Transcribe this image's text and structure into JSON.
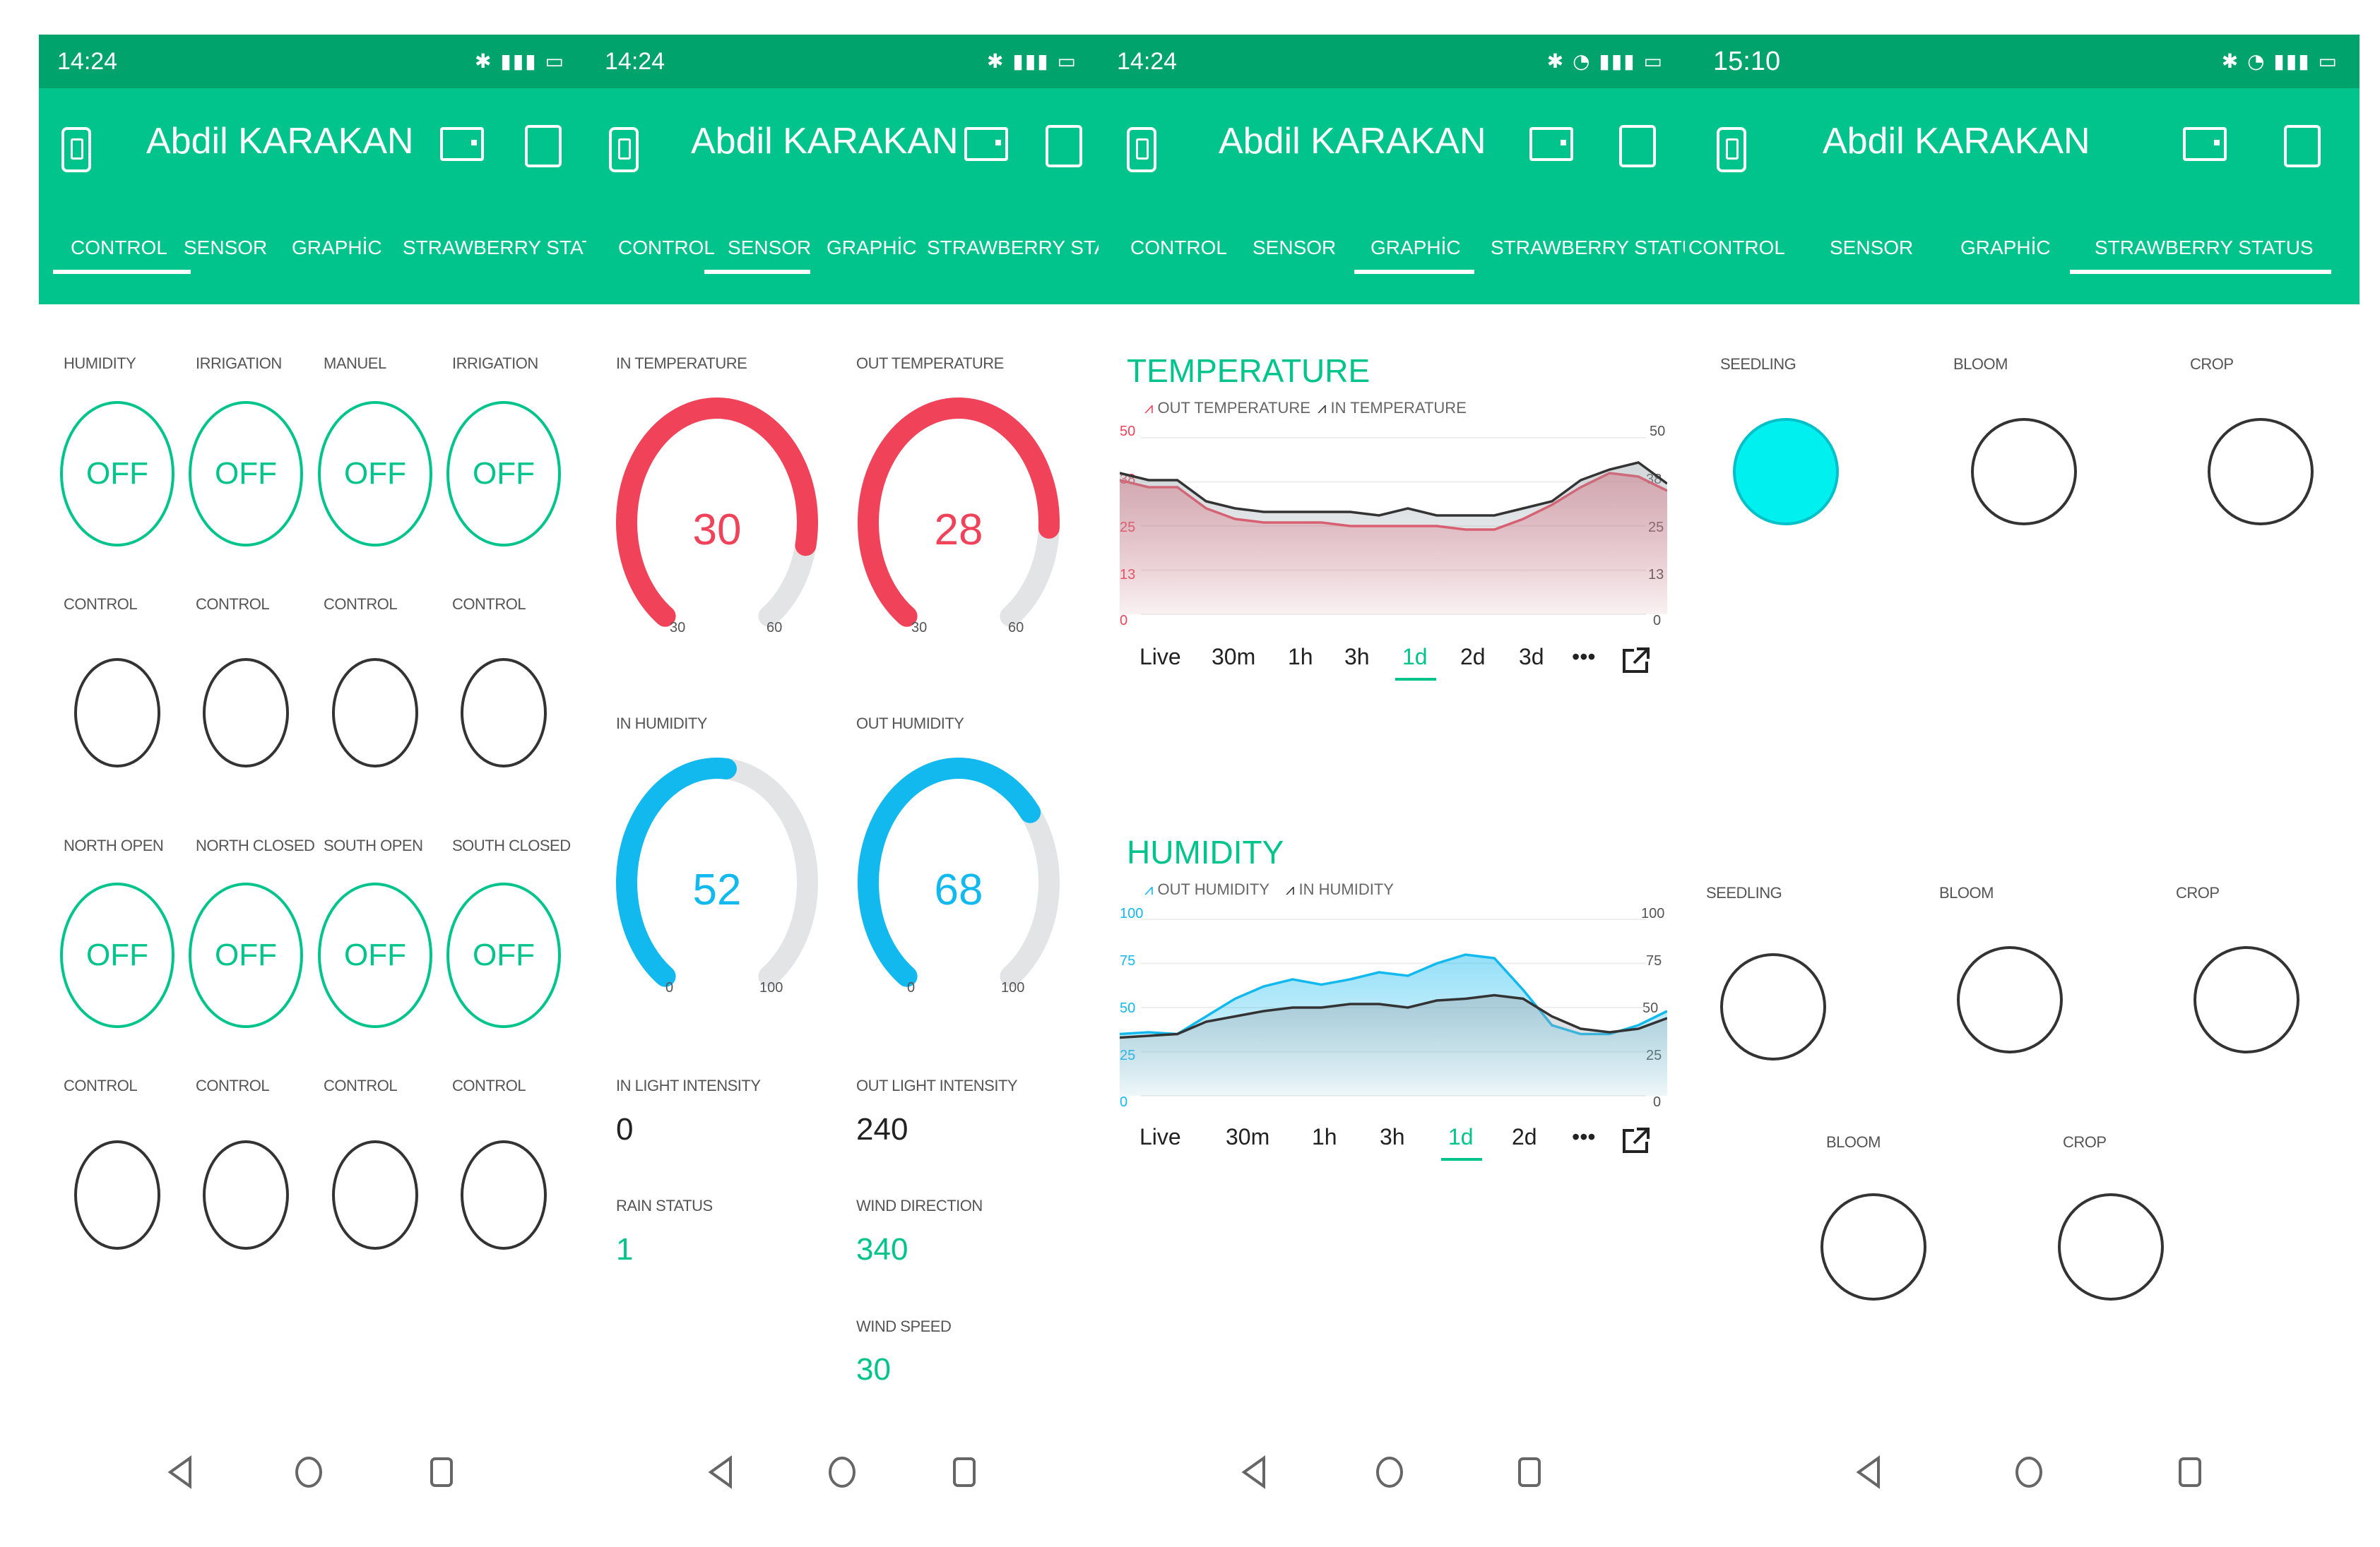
{
  "colors": {
    "status_bar": "#00a36b",
    "app_bar": "#00c48b",
    "accent": "#00c48b",
    "red": "#f0435a",
    "blue": "#12b9ef",
    "cyan_led": "#00f0f0"
  },
  "panels": [
    {
      "time": "14:24",
      "title": "Abdil KARAKAN",
      "tabs": [
        "CONTROL",
        "SENSOR",
        "GRAPHİC",
        "STRAWBERRY STATUS"
      ],
      "active_tab": 0
    },
    {
      "time": "14:24",
      "title": "Abdil KARAKAN",
      "tabs": [
        "CONTROL",
        "SENSOR",
        "GRAPHİC",
        "STRAWBERRY STATUS"
      ],
      "active_tab": 1
    },
    {
      "time": "14:24",
      "title": "Abdil KARAKAN",
      "tabs": [
        "CONTROL",
        "SENSOR",
        "GRAPHİC",
        "STRAWBERRY STATUS"
      ],
      "active_tab": 2
    },
    {
      "time": "15:10",
      "title": "Abdil KARAKAN",
      "tabs": [
        "CONTROL",
        "SENSOR",
        "GRAPHİC",
        "STRAWBERRY STATUS"
      ],
      "active_tab": 3
    }
  ],
  "control": {
    "row1_labels": [
      "HUMIDITY",
      "IRRIGATION",
      "MANUEL",
      "IRRIGATION"
    ],
    "row1_values": [
      "OFF",
      "OFF",
      "OFF",
      "OFF"
    ],
    "row2_labels": [
      "CONTROL",
      "CONTROL",
      "CONTROL",
      "CONTROL"
    ],
    "row3_labels": [
      "NORTH OPEN",
      "NORTH CLOSED",
      "SOUTH OPEN",
      "SOUTH CLOSED"
    ],
    "row3_values": [
      "OFF",
      "OFF",
      "OFF",
      "OFF"
    ],
    "row4_labels": [
      "CONTROL",
      "CONTROL",
      "CONTROL",
      "CONTROL"
    ]
  },
  "sensor": {
    "gauges": [
      {
        "label": "IN TEMPERATURE",
        "value": "30",
        "min": "30",
        "max": "60",
        "fraction": 0.85,
        "color": "#f0435a"
      },
      {
        "label": "OUT TEMPERATURE",
        "value": "28",
        "min": "30",
        "max": "60",
        "fraction": 0.82,
        "color": "#f0435a"
      },
      {
        "label": "IN HUMIDITY",
        "value": "52",
        "min": "0",
        "max": "100",
        "fraction": 0.52,
        "color": "#12b9ef"
      },
      {
        "label": "OUT HUMIDITY",
        "value": "68",
        "min": "0",
        "max": "100",
        "fraction": 0.68,
        "color": "#12b9ef"
      }
    ],
    "in_light_label": "IN LIGHT INTENSITY",
    "in_light_value": "0",
    "out_light_label": "OUT LIGHT INTENSITY",
    "out_light_value": "240",
    "rain_label": "RAIN STATUS",
    "rain_value": "1",
    "wind_dir_label": "WIND DIRECTION",
    "wind_dir_value": "340",
    "wind_speed_label": "WIND SPEED",
    "wind_speed_value": "30"
  },
  "graphic": {
    "temp_title": "TEMPERATURE",
    "temp_legend": [
      "OUT TEMPERATURE",
      "IN TEMPERATURE"
    ],
    "temp_left_ticks": [
      "50",
      "38",
      "25",
      "13",
      "0"
    ],
    "temp_right_ticks": [
      "50",
      "38",
      "25",
      "13",
      "0"
    ],
    "temp_ranges": [
      "Live",
      "30m",
      "1h",
      "3h",
      "1d",
      "2d",
      "3d",
      "•••"
    ],
    "temp_active_range": 4,
    "hum_title": "HUMIDITY",
    "hum_legend": [
      "OUT HUMIDITY",
      "IN HUMIDITY"
    ],
    "hum_left_ticks": [
      "100",
      "75",
      "50",
      "25",
      "0"
    ],
    "hum_right_ticks": [
      "100",
      "75",
      "50",
      "25",
      "0"
    ],
    "hum_ranges": [
      "Live",
      "30m",
      "1h",
      "3h",
      "1d",
      "2d",
      "•••"
    ],
    "hum_active_range": 4
  },
  "chart_data": [
    {
      "type": "area",
      "title": "TEMPERATURE",
      "ylim": [
        0,
        50
      ],
      "series": [
        {
          "name": "OUT TEMPERATURE",
          "values": [
            38,
            36,
            36,
            30,
            27,
            26,
            26,
            26,
            25,
            25,
            25,
            25,
            24,
            24,
            27,
            31,
            36,
            40,
            39,
            35
          ]
        },
        {
          "name": "IN TEMPERATURE",
          "values": [
            40,
            38,
            38,
            32,
            30,
            29,
            29,
            29,
            29,
            28,
            30,
            28,
            28,
            28,
            30,
            32,
            38,
            41,
            43,
            37
          ]
        }
      ]
    },
    {
      "type": "area",
      "title": "HUMIDITY",
      "ylim": [
        0,
        100
      ],
      "series": [
        {
          "name": "OUT HUMIDITY",
          "values": [
            35,
            36,
            35,
            45,
            55,
            62,
            66,
            63,
            66,
            70,
            68,
            75,
            80,
            78,
            60,
            40,
            35,
            35,
            40,
            48
          ]
        },
        {
          "name": "IN HUMIDITY",
          "values": [
            33,
            34,
            35,
            42,
            45,
            48,
            50,
            50,
            52,
            52,
            50,
            54,
            55,
            57,
            55,
            45,
            38,
            36,
            38,
            44
          ]
        }
      ]
    }
  ],
  "strawberry": {
    "row1_labels": [
      "SEEDLING",
      "BLOOM",
      "CROP"
    ],
    "row2_labels": [
      "SEEDLING",
      "BLOOM",
      "CROP"
    ],
    "row3_labels": [
      "BLOOM",
      "CROP"
    ]
  }
}
